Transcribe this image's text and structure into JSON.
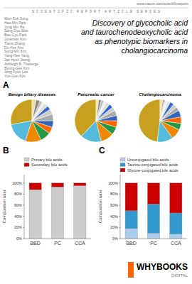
{
  "title": "Discovery of glycocholic acid\nand taurochenodeoxycholic acid\nas phenotypic biomarkers in\ncholangiocarcinoma",
  "annotations": [
    "www.nature.com/scientificreports",
    "S C I E N T I F I C  R E P O R T  A R T I C L E  S E R I E S",
    "Won-Suk Song\nHae-Min Park\nJung Min Ha\nSang Gyu Shin\nBae-Gyu Park\nJuneman Kim\nTianxi Zhang\nDu-Hee Ahn\nSung-Min Kim\nYang-Hee Yang\nJae Hyun Jeong\nAshleigh B. Theberge\nByung-Gee Kim\nJong Kyun Lee\nYun-Gon Kim",
    "A",
    "WHYBOOKS",
    "DIGITAL"
  ],
  "chart_data": [
    {
      "type": "pie",
      "title": "Benign biliary diseases",
      "values": [
        28,
        17,
        12,
        8,
        5,
        5,
        5,
        4,
        3,
        3,
        2,
        2,
        3,
        3
      ],
      "colors": [
        "#c8a020",
        "#55bbdd",
        "#ee8800",
        "#229944",
        "#ff6600",
        "#3366bb",
        "#aaaaaa",
        "#cccccc",
        "#3366cc",
        "#dddddd",
        "#eeeeee",
        "#bbbbbb",
        "#888888",
        "#f0e0a0"
      ]
    },
    {
      "type": "pie",
      "title": "Pancreatic cancer",
      "values": [
        38,
        16,
        10,
        6,
        5,
        4,
        4,
        3,
        3,
        3,
        2,
        2,
        2,
        2
      ],
      "colors": [
        "#c8a020",
        "#55bbdd",
        "#ee8800",
        "#229944",
        "#ff6600",
        "#3366bb",
        "#aaaaaa",
        "#cccccc",
        "#3366cc",
        "#dddddd",
        "#eeeeee",
        "#bbbbbb",
        "#888888",
        "#f0e0a0"
      ]
    },
    {
      "type": "pie",
      "title": "Cholangiocarcinoma",
      "values": [
        48,
        12,
        8,
        5,
        5,
        5,
        3,
        3,
        3,
        2,
        2,
        1,
        1,
        2
      ],
      "colors": [
        "#c8a020",
        "#55bbdd",
        "#ee8800",
        "#229944",
        "#ff6600",
        "#3366bb",
        "#aaaaaa",
        "#cccccc",
        "#3366cc",
        "#dddddd",
        "#eeeeee",
        "#bbbbbb",
        "#888888",
        "#f0e0a0"
      ]
    },
    {
      "type": "bar",
      "title": "B",
      "stacked": true,
      "legend": "upper left",
      "categories": [
        "BBD",
        "PC",
        "CCA"
      ],
      "series": [
        {
          "name": "Primary bile acids",
          "color": "#cccccc",
          "values": [
            88,
            93,
            95
          ]
        },
        {
          "name": "Secondary bile acids",
          "color": "#cc0000",
          "values": [
            12,
            7,
            5
          ]
        }
      ],
      "ylabel": "Composition ratio",
      "ylim": [
        0,
        115
      ],
      "yticks": [
        {
          "value": 0,
          "label": "0%"
        },
        {
          "value": 20,
          "label": "20%"
        },
        {
          "value": 40,
          "label": "40%"
        },
        {
          "value": 60,
          "label": "60%"
        },
        {
          "value": 80,
          "label": "80%"
        },
        {
          "value": 100,
          "label": "100%"
        }
      ]
    },
    {
      "type": "bar",
      "title": "C",
      "stacked": true,
      "legend": "upper left",
      "categories": [
        "BBD",
        "PC",
        "CCA"
      ],
      "series": [
        {
          "name": "Unconjugated bile acids",
          "color": "#aaccee",
          "values": [
            18,
            10,
            8
          ]
        },
        {
          "name": "Taurine-conjugated bile acids",
          "color": "#3399cc",
          "values": [
            32,
            52,
            38
          ]
        },
        {
          "name": "Glycine-conjugated bile acids",
          "color": "#cc0000",
          "values": [
            50,
            38,
            54
          ]
        }
      ],
      "ylabel": "Composition ratio",
      "ylim": [
        0,
        115
      ],
      "yticks": [
        {
          "value": 0,
          "label": "0%"
        },
        {
          "value": 20,
          "label": "20%"
        },
        {
          "value": 40,
          "label": "40%"
        },
        {
          "value": 60,
          "label": "60%"
        },
        {
          "value": 80,
          "label": "80%"
        },
        {
          "value": 100,
          "label": "100%"
        }
      ]
    }
  ]
}
